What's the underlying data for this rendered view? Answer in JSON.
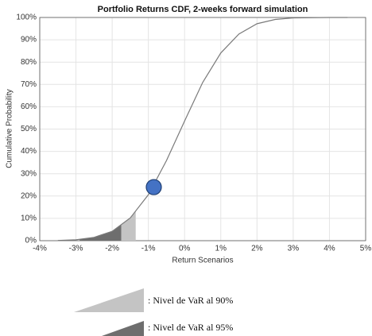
{
  "chart_data": {
    "type": "line",
    "title": "Portfolio Returns CDF, 2-weeks forward simulation",
    "xlabel": "Return Scenarios",
    "ylabel": "Cumulative Probability",
    "x": [
      -3.5,
      -3.0,
      -2.5,
      -2.0,
      -1.5,
      -1.0,
      -0.5,
      0,
      0.5,
      1.0,
      1.5,
      2.0,
      2.5,
      3.0,
      3.5,
      4.0,
      4.5
    ],
    "series": [
      {
        "color": "#7a7a7a",
        "values": [
          0.1,
          0.4,
          1.5,
          4.2,
          10.2,
          20.6,
          35.9,
          53.6,
          70.9,
          84.1,
          92.6,
          97.2,
          99.1,
          99.8,
          99.9,
          100,
          100
        ]
      }
    ],
    "xlim": [
      -4,
      5
    ],
    "xticks": [
      {
        "value": -4,
        "label": "-4%"
      },
      {
        "value": -3,
        "label": "-3%"
      },
      {
        "value": -2,
        "label": "-2%"
      },
      {
        "value": -1,
        "label": "-1%"
      },
      {
        "value": 0,
        "label": "0%"
      },
      {
        "value": 1,
        "label": "1%"
      },
      {
        "value": 2,
        "label": "2%"
      },
      {
        "value": 3,
        "label": "3%"
      },
      {
        "value": 4,
        "label": "4%"
      },
      {
        "value": 5,
        "label": "5%"
      }
    ],
    "ylim": [
      0,
      100
    ],
    "yticks": [
      {
        "value": 0,
        "label": "0%"
      },
      {
        "value": 10,
        "label": "10%"
      },
      {
        "value": 20,
        "label": "20%"
      },
      {
        "value": 30,
        "label": "30%"
      },
      {
        "value": 40,
        "label": "40%"
      },
      {
        "value": 50,
        "label": "50%"
      },
      {
        "value": 60,
        "label": "60%"
      },
      {
        "value": 70,
        "label": "70%"
      },
      {
        "value": 80,
        "label": "80%"
      },
      {
        "value": 90,
        "label": "90%"
      },
      {
        "value": 100,
        "label": "100%"
      }
    ],
    "grid": true,
    "marker": {
      "x": -0.85,
      "y": 24,
      "color": "#4472c4"
    },
    "var_levels": [
      {
        "label": ": Nivel de VaR al 90%",
        "color": "#c4c4c4",
        "x_from": -2.9,
        "x_to": -1.35
      },
      {
        "label": ": Nivel de VaR al 95%",
        "color": "#6e6e6e",
        "x_from": -2.9,
        "x_to": -1.75
      }
    ]
  }
}
